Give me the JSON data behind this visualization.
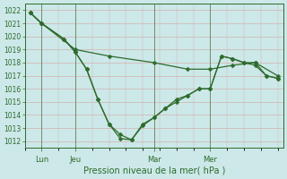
{
  "xlabel": "Pression niveau de la mer( hPa )",
  "ylim": [
    1011.5,
    1022.5
  ],
  "yticks": [
    1012,
    1013,
    1014,
    1015,
    1016,
    1017,
    1018,
    1019,
    1020,
    1021,
    1022
  ],
  "bg_color": "#cce8e8",
  "line_color": "#2d6b2d",
  "grid_color": "#d4b0b0",
  "xtick_labels": [
    "Lun",
    "Jeu",
    "Mar",
    "Mer"
  ],
  "xtick_positions": [
    1,
    4,
    11,
    16
  ],
  "vline_positions": [
    1,
    4,
    11,
    16
  ],
  "xlim": [
    -0.5,
    22.5
  ],
  "line1_x": [
    0,
    1,
    4,
    7,
    11,
    14,
    16,
    18,
    20,
    22
  ],
  "line1_y": [
    1021.8,
    1021.0,
    1019.0,
    1018.5,
    1018.0,
    1017.5,
    1017.5,
    1017.8,
    1018.0,
    1017.0
  ],
  "line2_x": [
    0,
    1,
    3,
    4,
    5,
    6,
    7,
    8,
    9,
    10,
    11,
    12,
    13,
    14,
    15,
    16,
    17,
    18,
    19,
    20,
    21,
    22
  ],
  "line2_y": [
    1021.8,
    1021.0,
    1019.8,
    1018.8,
    1017.5,
    1015.2,
    1013.3,
    1012.5,
    1012.1,
    1013.2,
    1013.8,
    1014.5,
    1015.2,
    1015.5,
    1016.0,
    1016.0,
    1018.5,
    1018.3,
    1018.0,
    1017.8,
    1017.0,
    1016.8
  ],
  "line3_x": [
    0,
    1,
    3,
    4,
    5,
    6,
    7,
    8,
    9,
    10,
    11,
    12,
    13,
    14,
    15,
    16,
    17,
    18,
    19,
    20,
    21,
    22
  ],
  "line3_y": [
    1021.8,
    1021.0,
    1019.8,
    1018.8,
    1017.5,
    1015.2,
    1013.3,
    1012.2,
    1012.1,
    1013.3,
    1013.8,
    1014.5,
    1015.0,
    1015.5,
    1016.0,
    1016.0,
    1018.5,
    1018.3,
    1018.0,
    1018.0,
    1017.0,
    1016.8
  ],
  "marker_size": 2.5,
  "linewidth": 0.9,
  "ylabel_fontsize": 6,
  "xlabel_fontsize": 7,
  "ytick_fontsize": 5.5,
  "xtick_fontsize": 6
}
